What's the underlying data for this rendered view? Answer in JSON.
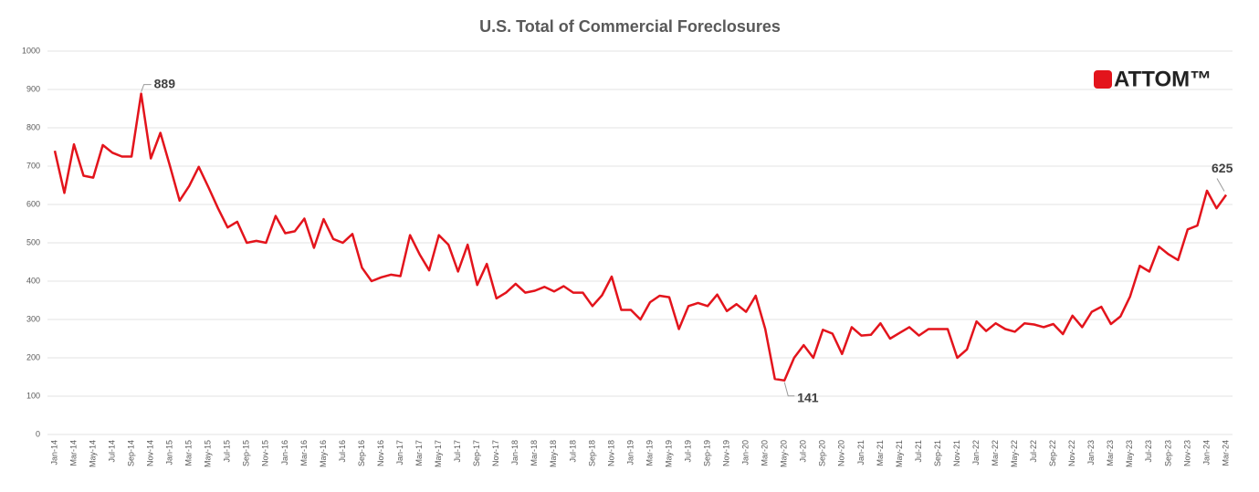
{
  "chart_data": {
    "type": "line",
    "title": "U.S. Total of Commercial Foreclosures",
    "brand": "ATTOM™",
    "categories": [
      "Jan-14",
      null,
      "Mar-14",
      null,
      "May-14",
      null,
      "Jul-14",
      null,
      "Sep-14",
      null,
      "Nov-14",
      null,
      "Jan-15",
      null,
      "Mar-15",
      null,
      "May-15",
      null,
      "Jul-15",
      null,
      "Sep-15",
      null,
      "Nov-15",
      null,
      "Jan-16",
      null,
      "Mar-16",
      null,
      "May-16",
      null,
      "Jul-16",
      null,
      "Sep-16",
      null,
      "Nov-16",
      null,
      "Jan-17",
      null,
      "Mar-17",
      null,
      "May-17",
      null,
      "Jul-17",
      null,
      "Sep-17",
      null,
      "Nov-17",
      null,
      "Jan-18",
      null,
      "Mar-18",
      null,
      "May-18",
      null,
      "Jul-18",
      null,
      "Sep-18",
      null,
      "Nov-18",
      null,
      "Jan-19",
      null,
      "Mar-19",
      null,
      "May-19",
      null,
      "Jul-19",
      null,
      "Sep-19",
      null,
      "Nov-19",
      null,
      "Jan-20",
      null,
      "Mar-20",
      null,
      "May-20",
      null,
      "Jul-20",
      null,
      "Sep-20",
      null,
      "Nov-20",
      null,
      "Jan-21",
      null,
      "Mar-21",
      null,
      "May-21",
      null,
      "Jul-21",
      null,
      "Sep-21",
      null,
      "Nov-21",
      null,
      "Jan-22",
      null,
      "Mar-22",
      null,
      "May-22",
      null,
      "Jul-22",
      null,
      "Sep-22",
      null,
      "Nov-22",
      null,
      "Jan-23",
      null,
      "Mar-23",
      null,
      "May-23",
      null,
      "Jul-23",
      null,
      "Sep-23",
      null,
      "Nov-23",
      null,
      "Jan-24",
      null,
      "Mar-24"
    ],
    "series": [
      {
        "name": "Commercial Foreclosures",
        "color": "#e3141c",
        "values": [
          740,
          630,
          757,
          675,
          670,
          755,
          735,
          725,
          725,
          889,
          720,
          787,
          700,
          610,
          648,
          698,
          645,
          590,
          540,
          555,
          500,
          505,
          500,
          570,
          525,
          530,
          563,
          487,
          562,
          510,
          500,
          523,
          435,
          400,
          410,
          417,
          413,
          520,
          470,
          428,
          520,
          495,
          425,
          495,
          390,
          445,
          355,
          370,
          393,
          370,
          375,
          385,
          373,
          387,
          370,
          370,
          335,
          363,
          412,
          325,
          325,
          300,
          345,
          362,
          358,
          275,
          335,
          343,
          335,
          365,
          322,
          340,
          320,
          362,
          275,
          145,
          141,
          200,
          233,
          200,
          273,
          263,
          210,
          280,
          258,
          260,
          290,
          250,
          265,
          280,
          258,
          275,
          275,
          275,
          200,
          222,
          295,
          270,
          290,
          275,
          268,
          290,
          287,
          280,
          288,
          262,
          310,
          280,
          320,
          333,
          288,
          308,
          360,
          440,
          425,
          490,
          470,
          455,
          535,
          545,
          636,
          590,
          625
        ],
        "value_labels": [
          null,
          null,
          null,
          null,
          null,
          null,
          null,
          null,
          null,
          "889",
          null,
          null,
          null,
          null,
          null,
          null,
          null,
          null,
          null,
          null,
          null,
          null,
          null,
          null,
          null,
          null,
          null,
          null,
          null,
          null,
          null,
          null,
          null,
          null,
          null,
          null,
          null,
          null,
          null,
          null,
          null,
          null,
          null,
          null,
          null,
          null,
          null,
          null,
          null,
          null,
          null,
          null,
          null,
          null,
          null,
          null,
          null,
          null,
          null,
          null,
          null,
          null,
          null,
          null,
          null,
          null,
          null,
          null,
          null,
          null,
          null,
          null,
          null,
          null,
          null,
          null,
          "141",
          null,
          null,
          null,
          null,
          null,
          null,
          null,
          null,
          null,
          null,
          null,
          null,
          null,
          null,
          null,
          null,
          null,
          null,
          null,
          null,
          null,
          null,
          null,
          null,
          null,
          null,
          null,
          null,
          null,
          null,
          null,
          null,
          null,
          null,
          null,
          null,
          null,
          null,
          null,
          null,
          null,
          null,
          null,
          null,
          null,
          "625"
        ]
      }
    ],
    "ylim": [
      0,
      1000
    ],
    "yticks": [
      0,
      100,
      200,
      300,
      400,
      500,
      600,
      700,
      800,
      900,
      1000
    ],
    "grid": true
  }
}
